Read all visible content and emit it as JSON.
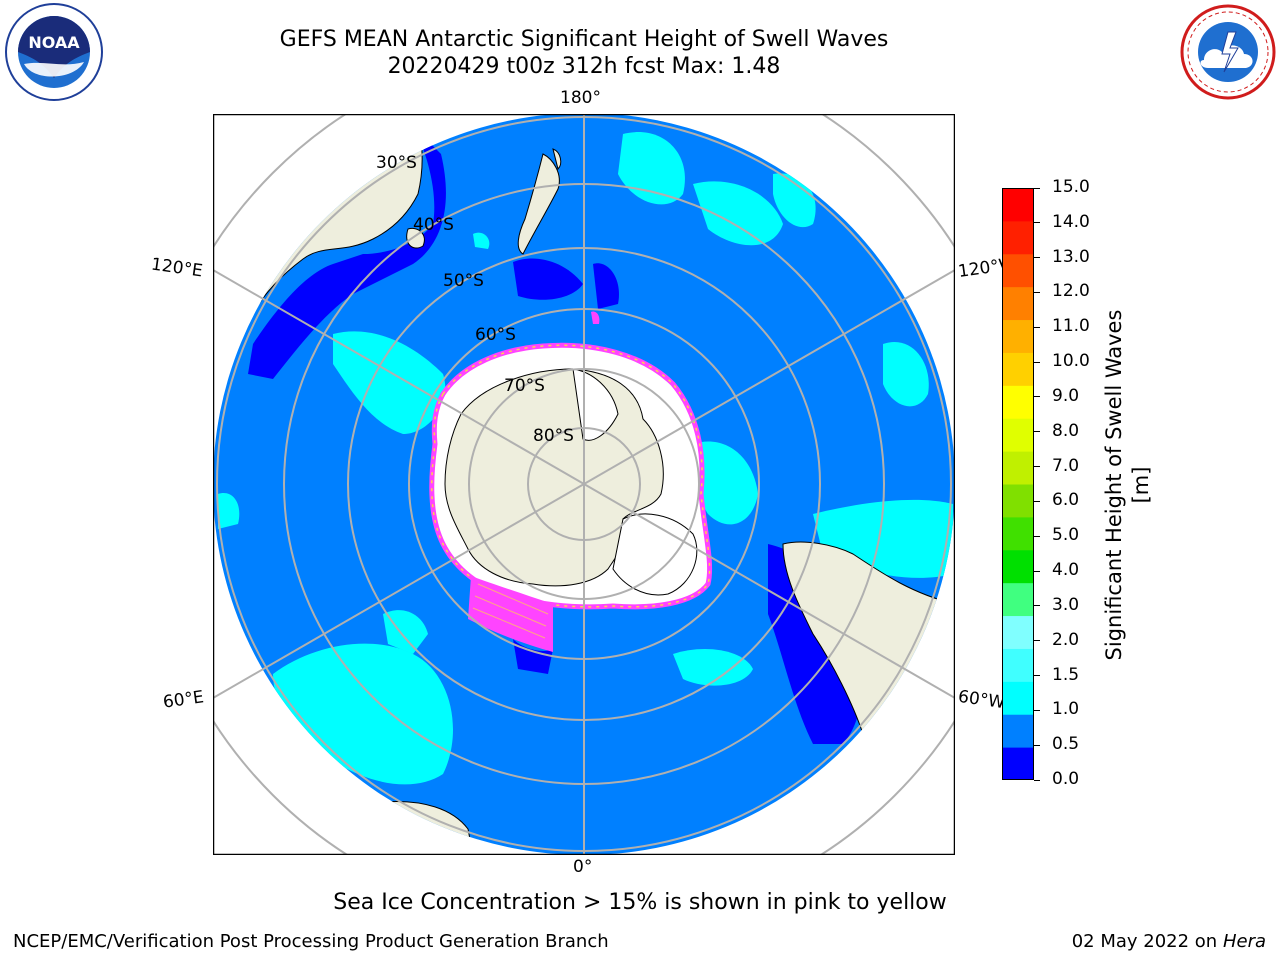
{
  "title": {
    "line1": "GEFS MEAN Antarctic Significant Height of Swell Waves",
    "line2": "20220429 t00z 312h fcst   Max: 1.48"
  },
  "logos": {
    "left": {
      "icon": "noaa-logo",
      "text": "NOAA"
    },
    "right": {
      "icon": "nws-logo",
      "text": "NATIONAL WEATHER SERVICE"
    }
  },
  "map": {
    "projection": "south-polar-stereographic",
    "longitude_labels": {
      "top": "180°",
      "bottom": "0°",
      "upper_left": "120°E",
      "upper_right": "120°W",
      "lower_left": "60°E",
      "lower_right": "60°W"
    },
    "latitude_labels": [
      "30°S",
      "40°S",
      "50°S",
      "60°S",
      "70°S",
      "80°S"
    ],
    "ocean_color": "#0080ff",
    "land_color": "#eeeedd",
    "ice_colors": [
      "#ff44ff",
      "#ffffff",
      "#ffd24d"
    ]
  },
  "colorbar": {
    "label": "Significant Height of Swell Waves [m]",
    "ticks": [
      "0.0",
      "0.5",
      "1.0",
      "1.5",
      "2.0",
      "3.0",
      "4.0",
      "5.0",
      "6.0",
      "7.0",
      "8.0",
      "9.0",
      "10.0",
      "11.0",
      "12.0",
      "13.0",
      "14.0",
      "15.0"
    ],
    "colors": [
      "#0000ff",
      "#0080ff",
      "#00ffff",
      "#40ffff",
      "#80ffff",
      "#40ff80",
      "#00e000",
      "#40e000",
      "#80e000",
      "#c0f000",
      "#e0ff00",
      "#ffff00",
      "#ffd000",
      "#ffb000",
      "#ff8000",
      "#ff5000",
      "#ff2000",
      "#ff0000"
    ]
  },
  "footer": {
    "note": "Sea Ice Concentration > 15% is shown in pink to yellow",
    "credit": "NCEP/EMC/Verification Post Processing Product Generation Branch",
    "date": "02 May 2022 on",
    "machine": "Hera"
  }
}
